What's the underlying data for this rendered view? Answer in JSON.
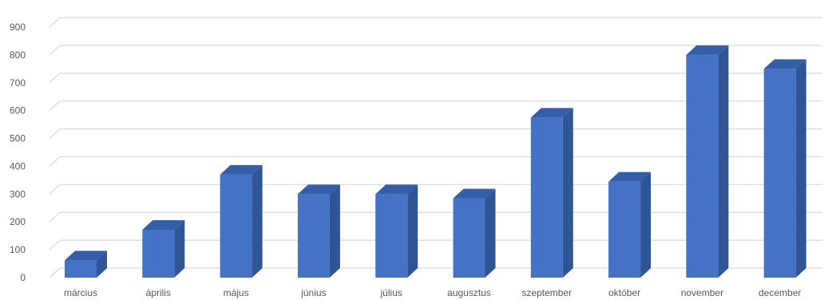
{
  "chart_data": {
    "type": "bar",
    "style": "3d-column",
    "categories": [
      "március",
      "április",
      "május",
      "június",
      "július",
      "augusztus",
      "szeptember",
      "október",
      "november",
      "december"
    ],
    "values": [
      62,
      172,
      370,
      300,
      300,
      285,
      575,
      345,
      800,
      750
    ],
    "ylim": [
      0,
      900
    ],
    "yticks": [
      0,
      100,
      200,
      300,
      400,
      500,
      600,
      700,
      800,
      900
    ],
    "grid": true,
    "legend": "none",
    "colors": {
      "bar_front": "#4472C4",
      "bar_side": "#2F5597",
      "bar_top": "#345EA8",
      "gridline": "#D9D9D9",
      "text": "#595959"
    }
  }
}
